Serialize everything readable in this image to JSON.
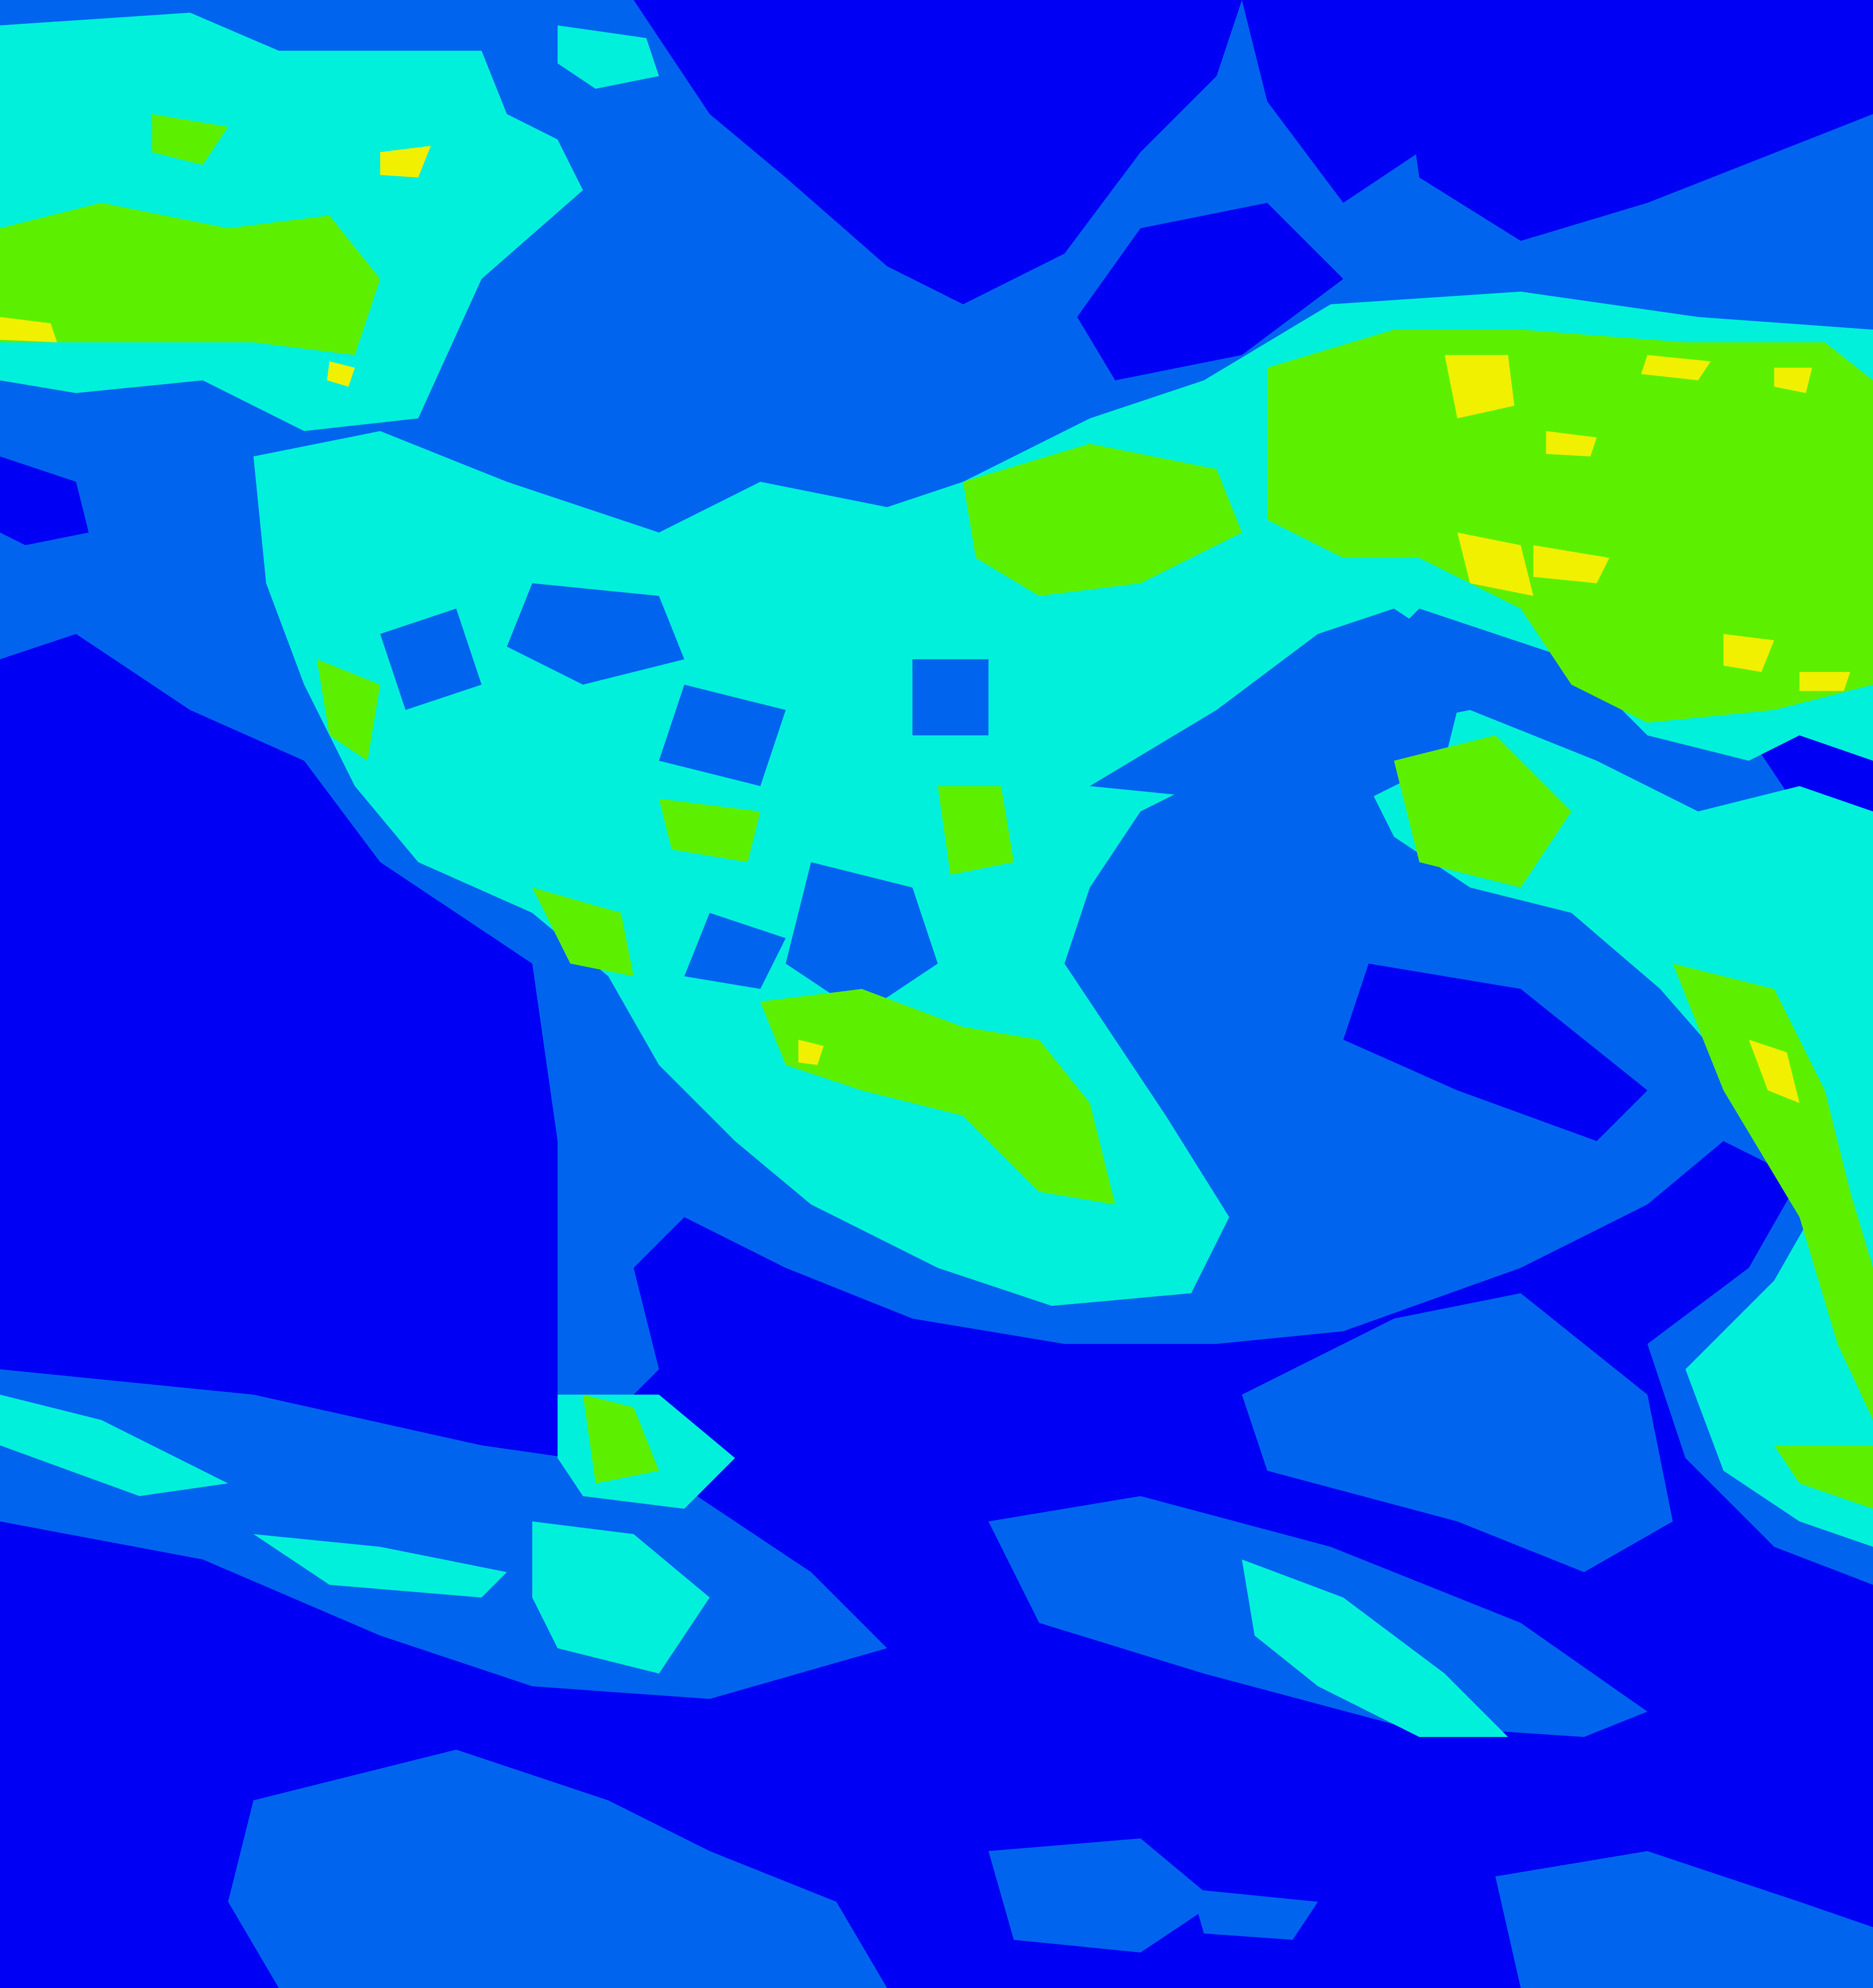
{
  "image": {
    "kind": "false-color satellite field",
    "palette": {
      "level_0": "#0000f5",
      "level_1": "#0064ef",
      "level_2": "#00f0dc",
      "level_3": "#5cf000",
      "level_4": "#f0f000"
    },
    "regions": [
      "north-pacific-band",
      "north-america-continent",
      "north-atlantic-band",
      "gulf-stream-band",
      "southern-bands"
    ]
  }
}
